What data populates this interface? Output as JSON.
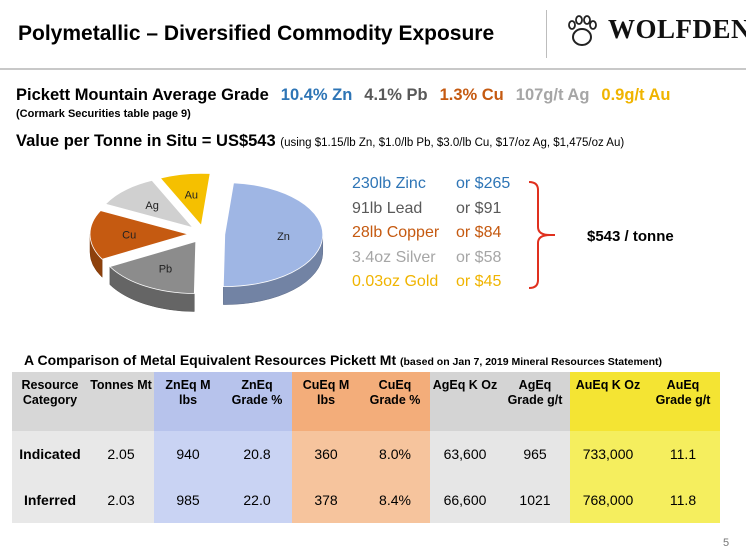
{
  "title": "Polymetallic – Diversified Commodity Exposure",
  "logo": {
    "text": "WOLFDEN",
    "icon": "wolf-paw-icon"
  },
  "grade": {
    "label": "Pickett Mountain Average Grade",
    "items": [
      {
        "text": "10.4% Zn",
        "color": "#2e75b6"
      },
      {
        "text": "4.1% Pb",
        "color": "#595959"
      },
      {
        "text": "1.3% Cu",
        "color": "#c55a11"
      },
      {
        "text": "107g/t Ag",
        "color": "#a6a6a6"
      },
      {
        "text": "0.9g/t Au",
        "color": "#f0b400"
      }
    ]
  },
  "source_note": "(Cormark Securities table page 9)",
  "value_per_tonne": {
    "label": "Value per Tonne in Situ = US$543",
    "note": "(using $1.15/lb Zn, $1.0/lb Pb, $3.0/lb Cu, $17/oz Ag, $1,475/oz Au)"
  },
  "chart_data": {
    "type": "pie",
    "labels": [
      "Zn",
      "Pb",
      "Cu",
      "Ag",
      "Au"
    ],
    "values": [
      265,
      91,
      84,
      58,
      45
    ],
    "colors": [
      "#9fb6e4",
      "#8c8c8c",
      "#c55a11",
      "#d0d0d0",
      "#f5c000"
    ]
  },
  "breakdown": [
    {
      "qty": "230lb Zinc",
      "value": "or $265",
      "color": "#2e75b6"
    },
    {
      "qty": "91lb Lead",
      "value": "or $91",
      "color": "#595959"
    },
    {
      "qty": "28lb Copper",
      "value": "or $84",
      "color": "#c55a11"
    },
    {
      "qty": "3.4oz Silver",
      "value": "or $58",
      "color": "#a6a6a6"
    },
    {
      "qty": "0.03oz Gold",
      "value": "or $45",
      "color": "#f0b400"
    }
  ],
  "total": "$543 / tonne",
  "comparison": {
    "title": "A Comparison of Metal Equivalent Resources Pickett Mt",
    "note": "(based on Jan 7, 2019 Mineral Resources Statement)",
    "headers": [
      {
        "text": "Resource Category",
        "cls": "c-cat"
      },
      {
        "text": "Tonnes Mt",
        "cls": "c-ton"
      },
      {
        "text": "ZnEq M lbs",
        "cls": "c-zn"
      },
      {
        "text": "ZnEq Grade %",
        "cls": "c-zn"
      },
      {
        "text": "CuEq M lbs",
        "cls": "c-cu"
      },
      {
        "text": "CuEq Grade %",
        "cls": "c-cu"
      },
      {
        "text": "AgEq K Oz",
        "cls": "c-ag"
      },
      {
        "text": "AgEq Grade g/t",
        "cls": "c-ag"
      },
      {
        "text": "AuEq K Oz",
        "cls": "c-au"
      },
      {
        "text": "AuEq Grade g/t",
        "cls": "c-au"
      }
    ],
    "rows": [
      [
        "Indicated",
        "2.05",
        "940",
        "20.8",
        "360",
        "8.0%",
        "63,600",
        "965",
        "733,000",
        "11.1"
      ],
      [
        "Inferred",
        "2.03",
        "985",
        "22.0",
        "378",
        "8.4%",
        "66,600",
        "1021",
        "768,000",
        "11.8"
      ]
    ]
  },
  "page_number": "5"
}
